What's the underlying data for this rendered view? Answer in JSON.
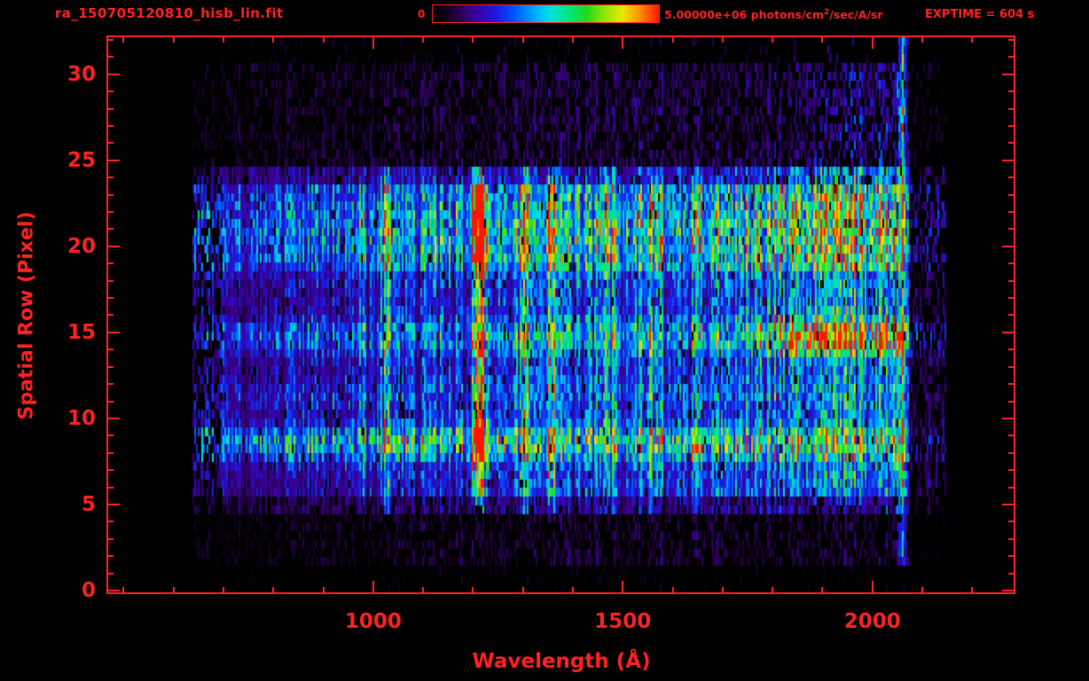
{
  "header": {
    "title": "ra_150705120810_hisb_lin.fit",
    "colorbar_min": "0",
    "colorbar_max_prefix": "5.00000e+06 photons/cm",
    "colorbar_max_sup": "2",
    "colorbar_max_suffix": "/sec/A/sr",
    "exptime": "EXPTIME = 604 s"
  },
  "colors": {
    "accent_red": "#ff2222",
    "background": "#000000"
  },
  "chart_data": {
    "type": "heatmap",
    "title": "ra_150705120810_hisb_lin.fit",
    "xlabel": "Wavelength (Å)",
    "ylabel": "Spatial Row (Pixel)",
    "x_ticks": [
      1000,
      1500,
      2000
    ],
    "x_minor_step": 100,
    "x_minor_start": 500,
    "x_minor_end": 2200,
    "y_ticks": [
      0,
      5,
      10,
      15,
      20,
      25,
      30
    ],
    "y_minor_step": 1,
    "y_minor_end": 32,
    "x_axis_range": [
      469,
      2283
    ],
    "y_axis_range": [
      -0.1,
      32.15
    ],
    "grid_on": false,
    "colorbar": {
      "min": 0,
      "max": 5000000,
      "max_label": "5.00000e+06",
      "units": "photons/cm^2/sec/A/sr"
    },
    "exposure_time_s": 604,
    "colormap_stops": [
      [
        0.0,
        "#000000"
      ],
      [
        0.05,
        "#0d0016"
      ],
      [
        0.13,
        "#2e0060"
      ],
      [
        0.2,
        "#3b00a8"
      ],
      [
        0.28,
        "#1a1ae0"
      ],
      [
        0.36,
        "#0055ff"
      ],
      [
        0.45,
        "#00a8ff"
      ],
      [
        0.52,
        "#00e0e0"
      ],
      [
        0.6,
        "#00e87a"
      ],
      [
        0.68,
        "#20d820"
      ],
      [
        0.76,
        "#8fe800"
      ],
      [
        0.84,
        "#e8e800"
      ],
      [
        0.91,
        "#ff9500"
      ],
      [
        1.0,
        "#ff1500"
      ]
    ],
    "features": {
      "seed": 7,
      "grid": {
        "nx": 512,
        "ny": 64
      },
      "data_extent": {
        "wl_min": 640,
        "wl_max": 2150
      },
      "row_profile": [
        {
          "r0": -0.5,
          "r1": 1.5,
          "v": 0.05,
          "fill": 0.12
        },
        {
          "r0": 1.5,
          "r1": 4.5,
          "v": 0.1,
          "fill": 0.45
        },
        {
          "r0": 4.5,
          "r1": 5.5,
          "v": 0.18,
          "fill": 0.8
        },
        {
          "r0": 5.5,
          "r1": 7.5,
          "v": 0.3,
          "fill": 0.97
        },
        {
          "r0": 7.5,
          "r1": 9.5,
          "v": 0.34,
          "fill": 0.97
        },
        {
          "r0": 9.5,
          "r1": 13.5,
          "v": 0.3,
          "fill": 0.95
        },
        {
          "r0": 13.5,
          "r1": 15.5,
          "v": 0.34,
          "fill": 0.95
        },
        {
          "r0": 15.5,
          "r1": 18.5,
          "v": 0.3,
          "fill": 0.95
        },
        {
          "r0": 18.5,
          "r1": 23.5,
          "v": 0.4,
          "fill": 0.97
        },
        {
          "r0": 23.5,
          "r1": 24.5,
          "v": 0.24,
          "fill": 0.9
        },
        {
          "r0": 24.5,
          "r1": 30.7,
          "v": 0.12,
          "fill": 0.5
        },
        {
          "r0": 30.7,
          "r1": 32.2,
          "v": 0.08,
          "fill": 0.1
        }
      ],
      "emission_lines": [
        {
          "wl": 700,
          "sigma": 5,
          "amp": 0.15
        },
        {
          "wl": 975,
          "sigma": 6,
          "amp": 0.22
        },
        {
          "wl": 1025,
          "sigma": 8,
          "amp": 0.3
        },
        {
          "wl": 1216,
          "sigma": 10,
          "amp": 0.7,
          "core_boost": true
        },
        {
          "wl": 1304,
          "sigma": 8,
          "amp": 0.38
        },
        {
          "wl": 1356,
          "sigma": 8,
          "amp": 0.3
        },
        {
          "wl": 1470,
          "sigma": 9,
          "amp": 0.22
        },
        {
          "wl": 1560,
          "sigma": 8,
          "amp": 0.13
        }
      ],
      "spatial_bands": [
        {
          "row": 8.6,
          "sigma": 0.7,
          "amp": 0.26
        },
        {
          "row": 11.4,
          "sigma": 0.7,
          "amp": 0.07
        },
        {
          "row": 14.8,
          "sigma": 0.75,
          "amp": 0.12,
          "ramp": {
            "from": 1700,
            "to": 1860,
            "extra": 0.3
          }
        },
        {
          "row": 20.8,
          "sigma": 1.8,
          "amp": 0.13
        }
      ],
      "red_bump": {
        "center": 1940,
        "sigma": 150,
        "amp": 0.15
      },
      "edge_glow": {
        "wl": 2062,
        "sigma": 7,
        "amp": 0.45,
        "spots": [
          {
            "row": 27.6,
            "amp": 0.55
          },
          {
            "row": 14.6,
            "amp": 0.5
          },
          {
            "row": 7.0,
            "amp": 0.45
          }
        ]
      },
      "noise": {
        "col_min": 0.55,
        "col_spread": 0.9,
        "cell_min": 0.55,
        "cell_spread": 0.85
      }
    }
  }
}
